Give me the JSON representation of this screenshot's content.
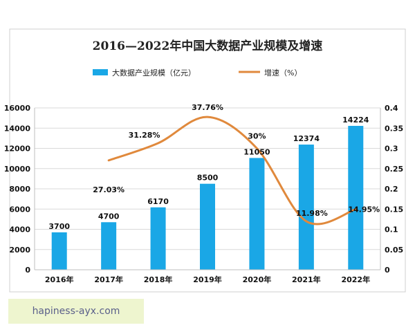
{
  "chart_data": {
    "type": "bar",
    "title": "2016—2022年中国大数据产业规模及增速",
    "categories": [
      "2016年",
      "2017年",
      "2018年",
      "2019年",
      "2020年",
      "2021年",
      "2022年"
    ],
    "series": [
      {
        "name": "大数据产业规模（亿元）",
        "type": "bar",
        "axis": "left",
        "color": "#1aa7e6",
        "values": [
          3700,
          4700,
          6170,
          8500,
          11050,
          12374,
          14224
        ],
        "labels": [
          "3700",
          "4700",
          "6170",
          "8500",
          "11050",
          "12374",
          "14224"
        ]
      },
      {
        "name": "增速（%）",
        "type": "line",
        "axis": "right",
        "color": "#e0893c",
        "values": [
          null,
          0.2703,
          0.3128,
          0.3776,
          0.3,
          0.1198,
          0.1495
        ],
        "labels": [
          "",
          "27.03%",
          "31.28%",
          "37.76%",
          "30%",
          "11.98%",
          "14.95%"
        ]
      }
    ],
    "y_left": {
      "ylim": [
        0,
        16000
      ],
      "ticks": [
        "0",
        "2000",
        "4000",
        "6000",
        "8000",
        "10000",
        "12000",
        "14000",
        "16000"
      ]
    },
    "y_right": {
      "ylim": [
        0,
        0.4
      ],
      "ticks": [
        "0",
        "0.05",
        "0.1",
        "0.15",
        "0.2",
        "0.25",
        "0.3",
        "0.35",
        "0.4"
      ]
    },
    "grid": "horizontal",
    "legend": "top-center"
  },
  "watermark": "hapiness-ayx.com"
}
